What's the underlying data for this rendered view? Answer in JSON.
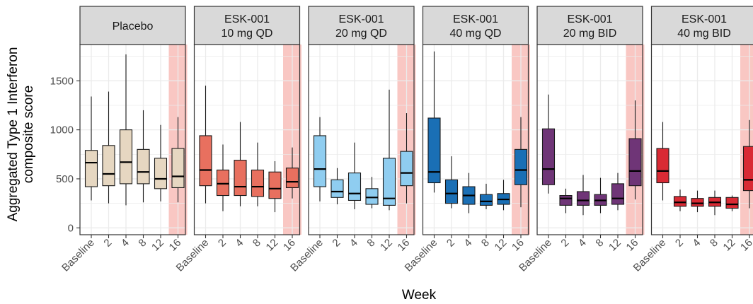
{
  "chart_data": {
    "type": "boxplot",
    "xlabel": "Week",
    "ylabel_lines": [
      "Aggregated Type 1 Interferon",
      "composite score"
    ],
    "x_categories": [
      "Baseline",
      "2",
      "4",
      "8",
      "12",
      "16"
    ],
    "y_ticks": [
      "0",
      "500",
      "1000",
      "1500"
    ],
    "y_tick_values": [
      0,
      500,
      1000,
      1500
    ],
    "ylim": [
      -70,
      1870
    ],
    "highlighted_category": "16",
    "highlight_color": "#f9c7c3",
    "panel_background": "#ffffff",
    "grid": true,
    "grid_color": "#ebebeb",
    "strip_background": "#d9d9d9",
    "panels": [
      {
        "title_lines": [
          "Placebo"
        ],
        "fill": "#e6d7c1",
        "boxes": [
          {
            "x": "Baseline",
            "whisker_low": 280,
            "q1": 420,
            "median": 665,
            "q3": 790,
            "whisker_high": 1340
          },
          {
            "x": "2",
            "whisker_low": 250,
            "q1": 430,
            "median": 550,
            "q3": 840,
            "whisker_high": 1390
          },
          {
            "x": "4",
            "whisker_low": 230,
            "q1": 450,
            "median": 670,
            "q3": 1000,
            "whisker_high": 1770
          },
          {
            "x": "8",
            "whisker_low": 260,
            "q1": 450,
            "median": 570,
            "q3": 800,
            "whisker_high": 1200
          },
          {
            "x": "12",
            "whisker_low": 270,
            "q1": 400,
            "median": 500,
            "q3": 710,
            "whisker_high": 1050
          },
          {
            "x": "16",
            "whisker_low": 260,
            "q1": 410,
            "median": 525,
            "q3": 810,
            "whisker_high": 1130
          }
        ]
      },
      {
        "title_lines": [
          "ESK-001",
          "10 mg QD"
        ],
        "fill": "#e8705f",
        "boxes": [
          {
            "x": "Baseline",
            "whisker_low": 250,
            "q1": 430,
            "median": 590,
            "q3": 940,
            "whisker_high": 1450
          },
          {
            "x": "2",
            "whisker_low": 170,
            "q1": 330,
            "median": 450,
            "q3": 590,
            "whisker_high": 850
          },
          {
            "x": "4",
            "whisker_low": 220,
            "q1": 330,
            "median": 420,
            "q3": 690,
            "whisker_high": 1080
          },
          {
            "x": "8",
            "whisker_low": 220,
            "q1": 320,
            "median": 420,
            "q3": 590,
            "whisker_high": 870
          },
          {
            "x": "12",
            "whisker_low": 160,
            "q1": 300,
            "median": 400,
            "q3": 570,
            "whisker_high": 680
          },
          {
            "x": "16",
            "whisker_low": 300,
            "q1": 410,
            "median": 470,
            "q3": 610,
            "whisker_high": 820
          }
        ]
      },
      {
        "title_lines": [
          "ESK-001",
          "20 mg QD"
        ],
        "fill": "#8fcdf0",
        "boxes": [
          {
            "x": "Baseline",
            "whisker_low": 270,
            "q1": 420,
            "median": 600,
            "q3": 940,
            "whisker_high": 1130
          },
          {
            "x": "2",
            "whisker_low": 240,
            "q1": 310,
            "median": 370,
            "q3": 490,
            "whisker_high": 610
          },
          {
            "x": "4",
            "whisker_low": 190,
            "q1": 280,
            "median": 350,
            "q3": 560,
            "whisker_high": 870
          },
          {
            "x": "8",
            "whisker_low": 200,
            "q1": 240,
            "median": 310,
            "q3": 400,
            "whisker_high": 520
          },
          {
            "x": "12",
            "whisker_low": 180,
            "q1": 230,
            "median": 300,
            "q3": 710,
            "whisker_high": 1410
          },
          {
            "x": "16",
            "whisker_low": 250,
            "q1": 430,
            "median": 560,
            "q3": 780,
            "whisker_high": 1170
          }
        ]
      },
      {
        "title_lines": [
          "ESK-001",
          "40 mg QD"
        ],
        "fill": "#1a6fb5",
        "boxes": [
          {
            "x": "Baseline",
            "whisker_low": 360,
            "q1": 460,
            "median": 570,
            "q3": 1120,
            "whisker_high": 1800
          },
          {
            "x": "2",
            "whisker_low": 200,
            "q1": 250,
            "median": 350,
            "q3": 490,
            "whisker_high": 730
          },
          {
            "x": "4",
            "whisker_low": 150,
            "q1": 240,
            "median": 330,
            "q3": 420,
            "whisker_high": 560
          },
          {
            "x": "8",
            "whisker_low": 190,
            "q1": 230,
            "median": 270,
            "q3": 340,
            "whisker_high": 450
          },
          {
            "x": "12",
            "whisker_low": 180,
            "q1": 240,
            "median": 290,
            "q3": 350,
            "whisker_high": 490
          },
          {
            "x": "16",
            "whisker_low": 210,
            "q1": 440,
            "median": 590,
            "q3": 800,
            "whisker_high": 1130
          }
        ]
      },
      {
        "title_lines": [
          "ESK-001",
          "20 mg BID"
        ],
        "fill": "#6f3577",
        "boxes": [
          {
            "x": "Baseline",
            "whisker_low": 350,
            "q1": 440,
            "median": 600,
            "q3": 1010,
            "whisker_high": 1360
          },
          {
            "x": "2",
            "whisker_low": 150,
            "q1": 230,
            "median": 300,
            "q3": 330,
            "whisker_high": 400
          },
          {
            "x": "4",
            "whisker_low": 130,
            "q1": 230,
            "median": 280,
            "q3": 370,
            "whisker_high": 540
          },
          {
            "x": "8",
            "whisker_low": 150,
            "q1": 230,
            "median": 280,
            "q3": 340,
            "whisker_high": 510
          },
          {
            "x": "12",
            "whisker_low": 180,
            "q1": 240,
            "median": 300,
            "q3": 450,
            "whisker_high": 560
          },
          {
            "x": "16",
            "whisker_low": 290,
            "q1": 430,
            "median": 580,
            "q3": 910,
            "whisker_high": 1300
          }
        ]
      },
      {
        "title_lines": [
          "ESK-001",
          "40 mg BID"
        ],
        "fill": "#d92a34",
        "boxes": [
          {
            "x": "Baseline",
            "whisker_low": 280,
            "q1": 460,
            "median": 580,
            "q3": 810,
            "whisker_high": 1080
          },
          {
            "x": "2",
            "whisker_low": 170,
            "q1": 220,
            "median": 260,
            "q3": 320,
            "whisker_high": 390
          },
          {
            "x": "4",
            "whisker_low": 160,
            "q1": 220,
            "median": 250,
            "q3": 300,
            "whisker_high": 380
          },
          {
            "x": "8",
            "whisker_low": 130,
            "q1": 220,
            "median": 260,
            "q3": 310,
            "whisker_high": 380
          },
          {
            "x": "12",
            "whisker_low": 170,
            "q1": 200,
            "median": 240,
            "q3": 310,
            "whisker_high": 330
          },
          {
            "x": "16",
            "whisker_low": 200,
            "q1": 380,
            "median": 490,
            "q3": 830,
            "whisker_high": 1100
          }
        ]
      }
    ]
  }
}
